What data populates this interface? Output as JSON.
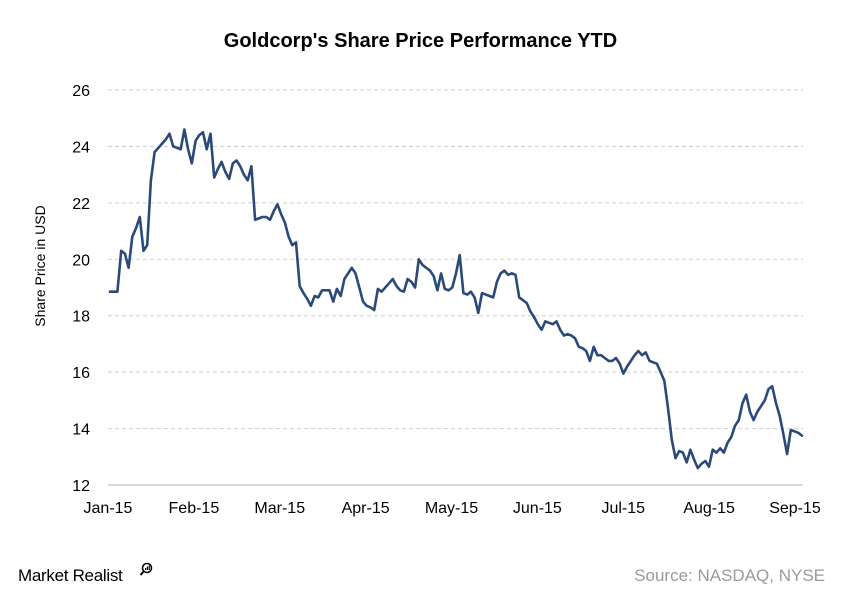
{
  "chart_data": {
    "type": "line",
    "title": "Goldcorp's Share Price Performance YTD",
    "ylabel": "Share Price in USD",
    "xlabel": "",
    "ylim": [
      12,
      26
    ],
    "yticks": [
      12,
      14,
      16,
      18,
      20,
      22,
      24,
      26
    ],
    "x_ticks": [
      "Jan-15",
      "Feb-15",
      "Mar-15",
      "Apr-15",
      "May-15",
      "Jun-15",
      "Jul-15",
      "Aug-15",
      "Sep-15"
    ],
    "grid": "horizontal dashed",
    "legend": "none",
    "line_color": "#2b4a7a",
    "series": [
      {
        "values": [
          18.85,
          18.85,
          18.85,
          20.3,
          20.2,
          19.7,
          20.8,
          21.1,
          21.5,
          20.3,
          20.5,
          22.8,
          23.8,
          23.95,
          24.1,
          24.25,
          24.45,
          24.0,
          23.95,
          23.9,
          24.6,
          23.9,
          23.4,
          24.2,
          24.4,
          24.5,
          23.9,
          24.45,
          22.9,
          23.2,
          23.45,
          23.1,
          22.85,
          23.4,
          23.5,
          23.3,
          23.0,
          22.8,
          23.3,
          21.4,
          21.45,
          21.5,
          21.5,
          21.4,
          21.7,
          21.95,
          21.6,
          21.3,
          20.8,
          20.5,
          20.6,
          19.05,
          18.8,
          18.6,
          18.35,
          18.7,
          18.65,
          18.9,
          18.9,
          18.9,
          18.5,
          18.95,
          18.7,
          19.3,
          19.5,
          19.7,
          19.5,
          19.0,
          18.5,
          18.35,
          18.3,
          18.2,
          18.95,
          18.85,
          19.0,
          19.15,
          19.3,
          19.05,
          18.9,
          18.85,
          19.3,
          19.2,
          19.0,
          20.0,
          19.8,
          19.7,
          19.6,
          19.4,
          18.9,
          19.5,
          18.95,
          18.9,
          19.0,
          19.5,
          20.15,
          18.8,
          18.75,
          18.85,
          18.65,
          18.1,
          18.8,
          18.75,
          18.7,
          18.65,
          19.2,
          19.5,
          19.6,
          19.45,
          19.5,
          19.45,
          18.65,
          18.55,
          18.45,
          18.15,
          17.95,
          17.7,
          17.5,
          17.8,
          17.75,
          17.7,
          17.8,
          17.5,
          17.3,
          17.35,
          17.3,
          17.2,
          16.9,
          16.85,
          16.75,
          16.4,
          16.9,
          16.6,
          16.6,
          16.5,
          16.4,
          16.4,
          16.5,
          16.3,
          15.95,
          16.2,
          16.4,
          16.6,
          16.75,
          16.6,
          16.7,
          16.4,
          16.35,
          16.3,
          16.0,
          15.7,
          14.7,
          13.6,
          12.95,
          13.2,
          13.15,
          12.8,
          13.25,
          12.9,
          12.6,
          12.75,
          12.85,
          12.65,
          13.25,
          13.15,
          13.3,
          13.15,
          13.5,
          13.7,
          14.1,
          14.3,
          14.9,
          15.2,
          14.6,
          14.3,
          14.6,
          14.8,
          15.0,
          15.4,
          15.5,
          14.9,
          14.45,
          13.8,
          13.1,
          13.95,
          13.9,
          13.85,
          13.75
        ]
      }
    ]
  },
  "footer": {
    "brand": "Market Realist",
    "source": "Source: NASDAQ, NYSE"
  }
}
